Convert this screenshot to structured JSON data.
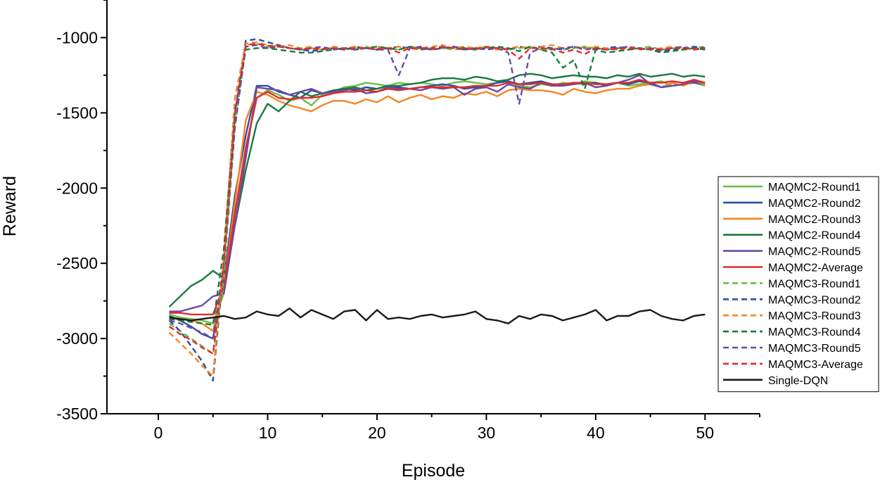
{
  "chart_data": {
    "type": "line",
    "title": "",
    "xlabel": "Episode",
    "ylabel": "Reward",
    "xlim": [
      -4.7,
      55
    ],
    "ylim": [
      -3500,
      -750
    ],
    "x_ticks": [
      0,
      10,
      20,
      30,
      40,
      50
    ],
    "y_ticks": [
      -3500,
      -3000,
      -2500,
      -2000,
      -1500,
      -1000
    ],
    "grid": false,
    "legend_position": "right",
    "x": [
      1,
      2,
      3,
      4,
      5,
      6,
      7,
      8,
      9,
      10,
      11,
      12,
      13,
      14,
      15,
      16,
      17,
      18,
      19,
      20,
      21,
      22,
      23,
      24,
      25,
      26,
      27,
      28,
      29,
      30,
      31,
      32,
      33,
      34,
      35,
      36,
      37,
      38,
      39,
      40,
      41,
      42,
      43,
      44,
      45,
      46,
      47,
      48,
      49,
      50
    ],
    "series": [
      {
        "name": "MAQMC2-Round1",
        "color": "#6abf45",
        "dash": "solid",
        "values": [
          -2840,
          -2860,
          -2870,
          -2880,
          -2900,
          -2700,
          -2200,
          -1750,
          -1400,
          -1350,
          -1380,
          -1420,
          -1400,
          -1450,
          -1380,
          -1360,
          -1330,
          -1320,
          -1300,
          -1310,
          -1320,
          -1300,
          -1310,
          -1300,
          -1310,
          -1320,
          -1300,
          -1290,
          -1300,
          -1310,
          -1300,
          -1290,
          -1320,
          -1330,
          -1310,
          -1320,
          -1300,
          -1310,
          -1290,
          -1300,
          -1310,
          -1300,
          -1320,
          -1310,
          -1300,
          -1290,
          -1320,
          -1310,
          -1300,
          -1320
        ]
      },
      {
        "name": "MAQMC2-Round2",
        "color": "#2e4fa3",
        "dash": "solid",
        "values": [
          -2850,
          -2880,
          -2920,
          -2970,
          -3000,
          -2600,
          -2050,
          -1650,
          -1320,
          -1320,
          -1360,
          -1380,
          -1400,
          -1350,
          -1370,
          -1360,
          -1340,
          -1350,
          -1330,
          -1340,
          -1320,
          -1330,
          -1340,
          -1330,
          -1320,
          -1310,
          -1320,
          -1340,
          -1330,
          -1320,
          -1300,
          -1290,
          -1310,
          -1300,
          -1290,
          -1310,
          -1320,
          -1300,
          -1310,
          -1300,
          -1320,
          -1300,
          -1310,
          -1290,
          -1300,
          -1330,
          -1320,
          -1310,
          -1300,
          -1310
        ]
      },
      {
        "name": "MAQMC2-Round3",
        "color": "#f5861f",
        "dash": "solid",
        "values": [
          -2860,
          -2870,
          -2880,
          -2900,
          -2950,
          -2650,
          -2100,
          -1550,
          -1360,
          -1380,
          -1420,
          -1450,
          -1470,
          -1490,
          -1450,
          -1420,
          -1420,
          -1440,
          -1410,
          -1430,
          -1390,
          -1430,
          -1400,
          -1380,
          -1410,
          -1390,
          -1400,
          -1370,
          -1380,
          -1360,
          -1390,
          -1350,
          -1340,
          -1350,
          -1350,
          -1360,
          -1380,
          -1340,
          -1360,
          -1370,
          -1350,
          -1340,
          -1340,
          -1320,
          -1310,
          -1330,
          -1300,
          -1320,
          -1290,
          -1310
        ]
      },
      {
        "name": "MAQMC2-Round4",
        "color": "#1a7a3c",
        "dash": "solid",
        "values": [
          -2790,
          -2720,
          -2650,
          -2610,
          -2550,
          -2600,
          -2250,
          -1880,
          -1570,
          -1440,
          -1490,
          -1420,
          -1360,
          -1390,
          -1370,
          -1350,
          -1340,
          -1330,
          -1350,
          -1340,
          -1320,
          -1320,
          -1310,
          -1300,
          -1280,
          -1270,
          -1270,
          -1280,
          -1260,
          -1270,
          -1290,
          -1280,
          -1250,
          -1240,
          -1250,
          -1270,
          -1260,
          -1250,
          -1260,
          -1260,
          -1270,
          -1250,
          -1260,
          -1240,
          -1260,
          -1250,
          -1240,
          -1260,
          -1250,
          -1260
        ]
      },
      {
        "name": "MAQMC2-Round5",
        "color": "#6a4aa5",
        "dash": "solid",
        "values": [
          -2820,
          -2820,
          -2800,
          -2780,
          -2720,
          -2700,
          -2250,
          -1800,
          -1330,
          -1340,
          -1350,
          -1380,
          -1360,
          -1340,
          -1370,
          -1360,
          -1350,
          -1340,
          -1370,
          -1360,
          -1330,
          -1340,
          -1340,
          -1350,
          -1330,
          -1340,
          -1330,
          -1380,
          -1340,
          -1330,
          -1360,
          -1310,
          -1330,
          -1340,
          -1300,
          -1320,
          -1320,
          -1310,
          -1300,
          -1330,
          -1320,
          -1300,
          -1280,
          -1250,
          -1310,
          -1330,
          -1320,
          -1310,
          -1290,
          -1300
        ]
      },
      {
        "name": "MAQMC2-Average",
        "color": "#e42a2a",
        "dash": "solid",
        "values": [
          -2830,
          -2830,
          -2840,
          -2840,
          -2840,
          -2650,
          -2170,
          -1730,
          -1400,
          -1360,
          -1400,
          -1410,
          -1400,
          -1400,
          -1390,
          -1370,
          -1360,
          -1360,
          -1350,
          -1360,
          -1340,
          -1350,
          -1340,
          -1330,
          -1330,
          -1330,
          -1330,
          -1330,
          -1320,
          -1320,
          -1320,
          -1300,
          -1310,
          -1310,
          -1300,
          -1310,
          -1310,
          -1300,
          -1300,
          -1310,
          -1310,
          -1300,
          -1300,
          -1280,
          -1300,
          -1300,
          -1290,
          -1300,
          -1280,
          -1300
        ]
      },
      {
        "name": "MAQMC3-Round1",
        "color": "#6abf45",
        "dash": "dashed",
        "values": [
          -2900,
          -2950,
          -3000,
          -3050,
          -3100,
          -2600,
          -1600,
          -1050,
          -1040,
          -1060,
          -1050,
          -1070,
          -1080,
          -1070,
          -1080,
          -1070,
          -1080,
          -1070,
          -1060,
          -1080,
          -1070,
          -1080,
          -1060,
          -1070,
          -1080,
          -1070,
          -1080,
          -1070,
          -1080,
          -1060,
          -1070,
          -1080,
          -1070,
          -1060,
          -1080,
          -1070,
          -1080,
          -1070,
          -1060,
          -1070,
          -1080,
          -1070,
          -1080,
          -1070,
          -1060,
          -1080,
          -1070,
          -1080,
          -1070,
          -1060
        ]
      },
      {
        "name": "MAQMC3-Round2",
        "color": "#2e4fa3",
        "dash": "dashed",
        "values": [
          -2880,
          -2950,
          -3050,
          -3150,
          -3280,
          -2500,
          -1500,
          -1020,
          -1010,
          -1030,
          -1050,
          -1070,
          -1080,
          -1090,
          -1080,
          -1070,
          -1080,
          -1060,
          -1070,
          -1080,
          -1070,
          -1060,
          -1070,
          -1080,
          -1070,
          -1060,
          -1070,
          -1080,
          -1070,
          -1060,
          -1070,
          -1080,
          -1060,
          -1070,
          -1060,
          -1070,
          -1080,
          -1060,
          -1070,
          -1080,
          -1070,
          -1060,
          -1080,
          -1070,
          -1080,
          -1090,
          -1080,
          -1070,
          -1060,
          -1070
        ]
      },
      {
        "name": "MAQMC3-Round3",
        "color": "#f5861f",
        "dash": "dashed",
        "values": [
          -2960,
          -3030,
          -3100,
          -3180,
          -3250,
          -2450,
          -1400,
          -1040,
          -1030,
          -1050,
          -1060,
          -1050,
          -1070,
          -1060,
          -1080,
          -1060,
          -1070,
          -1060,
          -1070,
          -1060,
          -1070,
          -1060,
          -1080,
          -1070,
          -1060,
          -1050,
          -1070,
          -1060,
          -1070,
          -1060,
          -1080,
          -1070,
          -1060,
          -1070,
          -1060,
          -1050,
          -1070,
          -1060,
          -1070,
          -1060,
          -1070,
          -1080,
          -1060,
          -1070,
          -1080,
          -1070,
          -1060,
          -1070,
          -1080,
          -1070
        ]
      },
      {
        "name": "MAQMC3-Round4",
        "color": "#1a7a3c",
        "dash": "dashed",
        "values": [
          -2870,
          -2880,
          -2890,
          -2900,
          -2910,
          -2400,
          -1500,
          -1080,
          -1070,
          -1070,
          -1080,
          -1090,
          -1100,
          -1100,
          -1090,
          -1080,
          -1070,
          -1080,
          -1070,
          -1060,
          -1070,
          -1080,
          -1060,
          -1070,
          -1080,
          -1070,
          -1060,
          -1070,
          -1080,
          -1070,
          -1060,
          -1070,
          -1090,
          -1060,
          -1080,
          -1100,
          -1200,
          -1150,
          -1340,
          -1080,
          -1100,
          -1090,
          -1080,
          -1070,
          -1080,
          -1100,
          -1090,
          -1080,
          -1070,
          -1080
        ]
      },
      {
        "name": "MAQMC3-Round5",
        "color": "#6a4aa5",
        "dash": "dashed",
        "values": [
          -2880,
          -2900,
          -2930,
          -2960,
          -3000,
          -2500,
          -1600,
          -1060,
          -1050,
          -1070,
          -1060,
          -1070,
          -1080,
          -1070,
          -1060,
          -1080,
          -1070,
          -1080,
          -1070,
          -1080,
          -1080,
          -1250,
          -1070,
          -1060,
          -1080,
          -1070,
          -1060,
          -1080,
          -1070,
          -1080,
          -1070,
          -1100,
          -1440,
          -1100,
          -1070,
          -1080,
          -1070,
          -1060,
          -1080,
          -1070,
          -1080,
          -1070,
          -1060,
          -1080,
          -1070,
          -1080,
          -1070,
          -1060,
          -1080,
          -1070
        ]
      },
      {
        "name": "MAQMC3-Average",
        "color": "#e42a2a",
        "dash": "dashed",
        "values": [
          -2920,
          -2970,
          -3010,
          -3060,
          -3100,
          -2500,
          -1500,
          -1050,
          -1040,
          -1055,
          -1060,
          -1070,
          -1075,
          -1075,
          -1075,
          -1070,
          -1075,
          -1070,
          -1070,
          -1075,
          -1070,
          -1100,
          -1070,
          -1070,
          -1075,
          -1065,
          -1070,
          -1075,
          -1075,
          -1065,
          -1070,
          -1080,
          -1140,
          -1070,
          -1070,
          -1075,
          -1100,
          -1080,
          -1110,
          -1070,
          -1080,
          -1075,
          -1070,
          -1075,
          -1075,
          -1080,
          -1070,
          -1070,
          -1075,
          -1070
        ]
      },
      {
        "name": "Single-DQN",
        "color": "#1a1a1a",
        "dash": "solid",
        "values": [
          -2860,
          -2870,
          -2880,
          -2870,
          -2860,
          -2850,
          -2870,
          -2860,
          -2820,
          -2840,
          -2850,
          -2800,
          -2860,
          -2810,
          -2840,
          -2870,
          -2820,
          -2810,
          -2880,
          -2810,
          -2870,
          -2860,
          -2870,
          -2850,
          -2840,
          -2860,
          -2850,
          -2840,
          -2820,
          -2870,
          -2880,
          -2900,
          -2850,
          -2870,
          -2840,
          -2850,
          -2880,
          -2860,
          -2840,
          -2810,
          -2880,
          -2850,
          -2850,
          -2820,
          -2810,
          -2850,
          -2870,
          -2880,
          -2850,
          -2840
        ]
      }
    ]
  }
}
